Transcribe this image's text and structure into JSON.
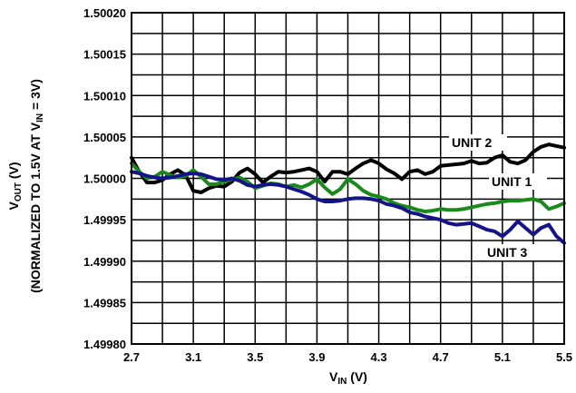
{
  "chart_data": {
    "type": "line",
    "xlabel": {
      "main": "V",
      "sub": "IN",
      "tail": " (V)"
    },
    "ylabel": {
      "line1": {
        "main": "V",
        "sub": "OUT",
        "tail": " (V)"
      },
      "line2": {
        "pre": "(NORMALIZED TO 1.5V AT V",
        "sub": "IN",
        "tail": " = 3V)"
      }
    },
    "xlim": [
      2.7,
      5.5
    ],
    "ylim": [
      1.4998,
      1.5002
    ],
    "x_ticks": [
      "2.7",
      "3.1",
      "3.5",
      "3.9",
      "4.3",
      "4.7",
      "5.1",
      "5.5"
    ],
    "y_ticks": [
      "1.49980",
      "1.49985",
      "1.49990",
      "1.49995",
      "1.50000",
      "1.50005",
      "1.50010",
      "1.50015",
      "1.50020"
    ],
    "grid": true,
    "series": [
      {
        "name": "UNIT 2",
        "color": "#000000",
        "x": [
          2.7,
          2.75,
          2.8,
          2.85,
          2.9,
          2.95,
          3.0,
          3.05,
          3.1,
          3.15,
          3.2,
          3.25,
          3.3,
          3.35,
          3.4,
          3.45,
          3.5,
          3.55,
          3.6,
          3.65,
          3.7,
          3.75,
          3.8,
          3.85,
          3.9,
          3.95,
          4.0,
          4.05,
          4.1,
          4.15,
          4.2,
          4.25,
          4.3,
          4.35,
          4.4,
          4.45,
          4.5,
          4.55,
          4.6,
          4.65,
          4.7,
          4.75,
          4.8,
          4.85,
          4.9,
          4.95,
          5.0,
          5.05,
          5.1,
          5.15,
          5.2,
          5.25,
          5.3,
          5.35,
          5.4,
          5.45,
          5.5
        ],
        "values": [
          1.500025,
          1.500008,
          1.499995,
          1.499995,
          1.499998,
          1.500005,
          1.50001,
          1.500004,
          1.499985,
          1.499983,
          1.499988,
          1.499991,
          1.49999,
          1.499996,
          1.500007,
          1.500012,
          1.500005,
          1.499995,
          1.500002,
          1.500008,
          1.500007,
          1.500008,
          1.50001,
          1.500012,
          1.500008,
          1.499996,
          1.500008,
          1.500008,
          1.500005,
          1.500012,
          1.500018,
          1.500022,
          1.500018,
          1.500011,
          1.500006,
          1.499999,
          1.500008,
          1.50001,
          1.500005,
          1.500008,
          1.500015,
          1.500016,
          1.500017,
          1.500018,
          1.500021,
          1.500018,
          1.500019,
          1.500025,
          1.500028,
          1.50002,
          1.500018,
          1.500022,
          1.500032,
          1.500038,
          1.500041,
          1.500039,
          1.500037
        ]
      },
      {
        "name": "UNIT 1",
        "color": "#1a8a1a",
        "x": [
          2.7,
          2.75,
          2.8,
          2.85,
          2.9,
          2.95,
          3.0,
          3.05,
          3.1,
          3.15,
          3.2,
          3.25,
          3.3,
          3.35,
          3.4,
          3.45,
          3.5,
          3.55,
          3.6,
          3.65,
          3.7,
          3.75,
          3.8,
          3.85,
          3.9,
          3.95,
          4.0,
          4.05,
          4.1,
          4.15,
          4.2,
          4.25,
          4.3,
          4.35,
          4.4,
          4.45,
          4.5,
          4.55,
          4.6,
          4.65,
          4.7,
          4.75,
          4.8,
          4.85,
          4.9,
          4.95,
          5.0,
          5.05,
          5.1,
          5.15,
          5.2,
          5.25,
          5.3,
          5.35,
          5.4,
          5.45,
          5.5
        ],
        "values": [
          1.500018,
          1.500008,
          1.5,
          1.500002,
          1.500008,
          1.500004,
          1.500001,
          1.500003,
          1.50001,
          1.500002,
          1.499993,
          1.499993,
          1.499996,
          1.499999,
          1.500001,
          1.499996,
          1.499988,
          1.499991,
          1.499994,
          1.499993,
          1.49999,
          1.499992,
          1.499989,
          1.499993,
          1.499999,
          1.499989,
          1.499981,
          1.499987,
          1.499999,
          1.499993,
          1.499985,
          1.49998,
          1.499978,
          1.499975,
          1.49997,
          1.499967,
          1.499965,
          1.499962,
          1.49996,
          1.499961,
          1.499963,
          1.499962,
          1.499962,
          1.499963,
          1.499965,
          1.499967,
          1.499969,
          1.49997,
          1.499972,
          1.499973,
          1.499973,
          1.499974,
          1.499975,
          1.499972,
          1.499963,
          1.499966,
          1.49997
        ]
      },
      {
        "name": "UNIT 3",
        "color": "#14148a",
        "x": [
          2.7,
          2.75,
          2.8,
          2.85,
          2.9,
          2.95,
          3.0,
          3.05,
          3.1,
          3.15,
          3.2,
          3.25,
          3.3,
          3.35,
          3.4,
          3.45,
          3.5,
          3.55,
          3.6,
          3.65,
          3.7,
          3.75,
          3.8,
          3.85,
          3.9,
          3.95,
          4.0,
          4.05,
          4.1,
          4.15,
          4.2,
          4.25,
          4.3,
          4.35,
          4.4,
          4.45,
          4.5,
          4.55,
          4.6,
          4.65,
          4.7,
          4.75,
          4.8,
          4.85,
          4.9,
          4.95,
          5.0,
          5.05,
          5.1,
          5.15,
          5.2,
          5.25,
          5.3,
          5.35,
          5.4,
          5.45,
          5.5
        ],
        "values": [
          1.500008,
          1.500006,
          1.500003,
          1.500001,
          1.5,
          1.500001,
          1.500003,
          1.500005,
          1.500006,
          1.500005,
          1.500002,
          1.499999,
          1.499998,
          1.5,
          1.499997,
          1.499992,
          1.49999,
          1.499992,
          1.499993,
          1.499992,
          1.49999,
          1.499987,
          1.499984,
          1.49998,
          1.499975,
          1.499972,
          1.499972,
          1.499973,
          1.499975,
          1.499976,
          1.499976,
          1.499975,
          1.499973,
          1.499969,
          1.499967,
          1.499964,
          1.499959,
          1.499957,
          1.499954,
          1.499952,
          1.49995,
          1.499946,
          1.499944,
          1.499945,
          1.499946,
          1.499942,
          1.499938,
          1.499936,
          1.49993,
          1.499938,
          1.499948,
          1.49994,
          1.499932,
          1.49994,
          1.499944,
          1.49993,
          1.499922
        ]
      }
    ]
  }
}
